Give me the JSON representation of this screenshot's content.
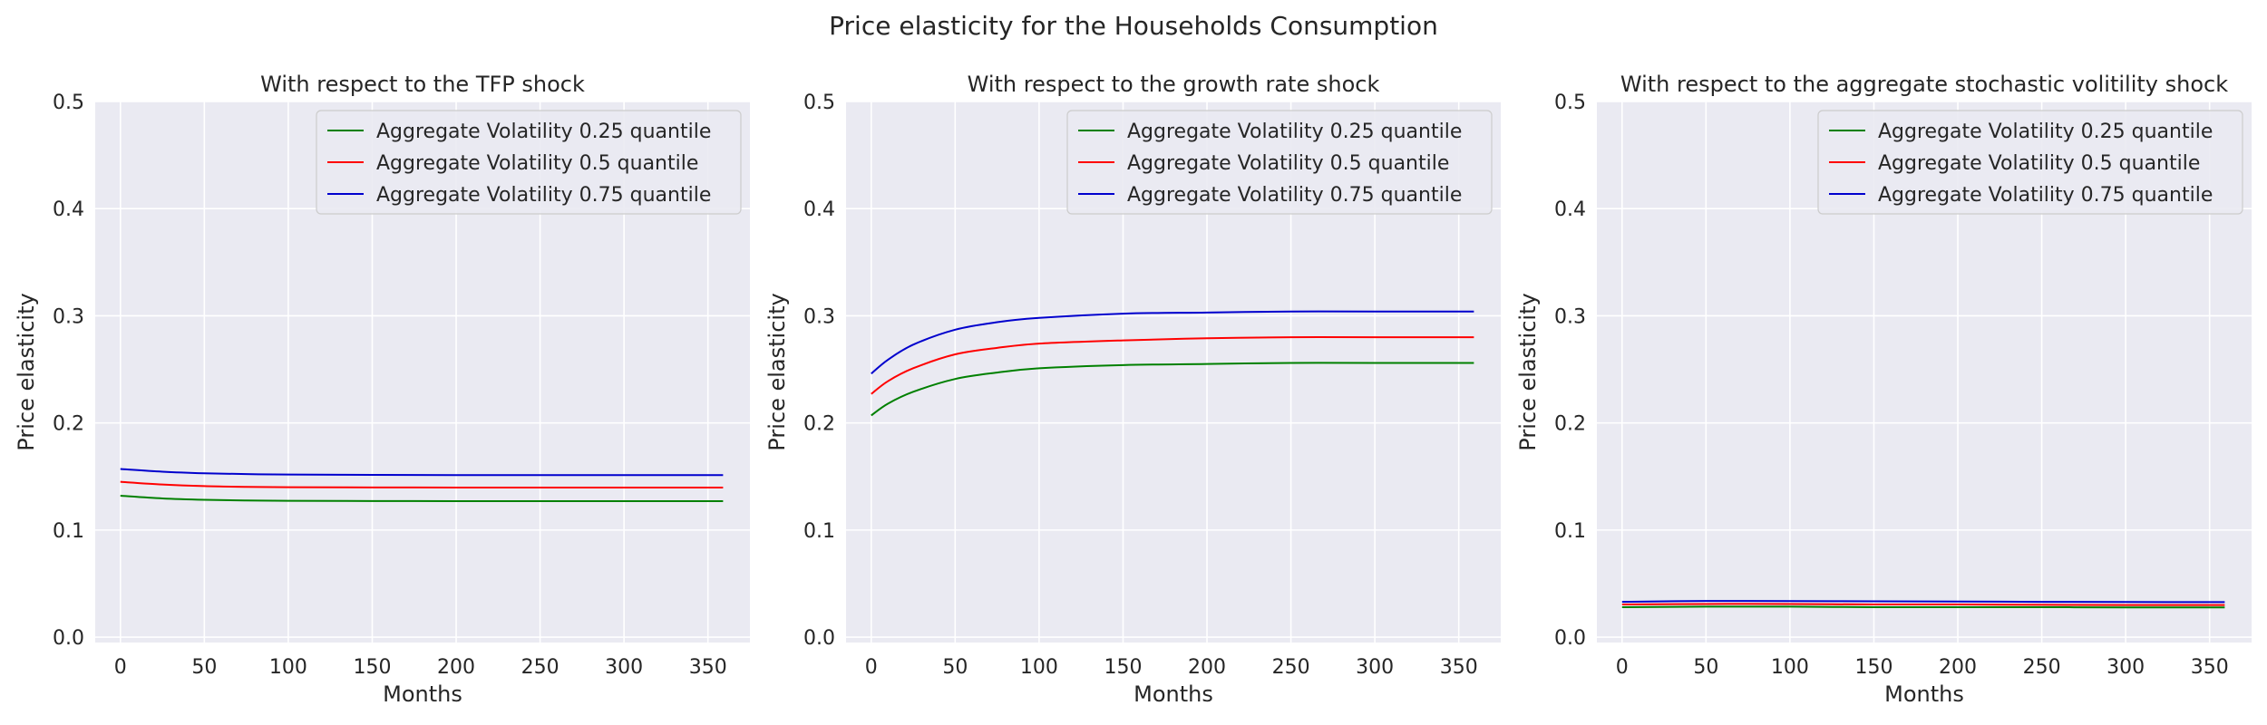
{
  "figure": {
    "title": "Price elasticity for the Households Consumption"
  },
  "chart_data": [
    {
      "type": "line",
      "title": "With respect to the TFP shock",
      "xlabel": "Months",
      "ylabel": "Price elasticity",
      "xlim": [
        -15,
        375
      ],
      "ylim": [
        -0.005,
        0.5
      ],
      "xticks": [
        0,
        50,
        100,
        150,
        200,
        250,
        300,
        350
      ],
      "yticks": [
        0.0,
        0.1,
        0.2,
        0.3,
        0.4,
        0.5
      ],
      "grid": true,
      "legend": "top-right",
      "series": [
        {
          "name": "Aggregate Volatility 0.25 quantile",
          "color": "#008000",
          "x": [
            0,
            25,
            50,
            75,
            100,
            150,
            200,
            250,
            300,
            359
          ],
          "y": [
            0.132,
            0.1295,
            0.1282,
            0.1276,
            0.1273,
            0.1271,
            0.127,
            0.127,
            0.127,
            0.127
          ]
        },
        {
          "name": "Aggregate Volatility 0.5 quantile",
          "color": "#ff0000",
          "x": [
            0,
            25,
            50,
            75,
            100,
            150,
            200,
            250,
            300,
            359
          ],
          "y": [
            0.145,
            0.1425,
            0.141,
            0.1403,
            0.14,
            0.1398,
            0.1397,
            0.1397,
            0.1397,
            0.1397
          ]
        },
        {
          "name": "Aggregate Volatility 0.75 quantile",
          "color": "#0000cd",
          "x": [
            0,
            25,
            50,
            75,
            100,
            150,
            200,
            250,
            300,
            359
          ],
          "y": [
            0.157,
            0.1545,
            0.153,
            0.1522,
            0.1518,
            0.1515,
            0.1513,
            0.1513,
            0.1513,
            0.1513
          ]
        }
      ]
    },
    {
      "type": "line",
      "title": "With respect to the growth rate shock",
      "xlabel": "Months",
      "ylabel": "Price elasticity",
      "xlim": [
        -15,
        375
      ],
      "ylim": [
        -0.005,
        0.5
      ],
      "xticks": [
        0,
        50,
        100,
        150,
        200,
        250,
        300,
        350
      ],
      "yticks": [
        0.0,
        0.1,
        0.2,
        0.3,
        0.4,
        0.5
      ],
      "grid": true,
      "legend": "top-right",
      "series": [
        {
          "name": "Aggregate Volatility 0.25 quantile",
          "color": "#008000",
          "x": [
            0,
            10,
            25,
            50,
            75,
            100,
            150,
            200,
            250,
            300,
            359
          ],
          "y": [
            0.207,
            0.218,
            0.229,
            0.241,
            0.247,
            0.251,
            0.254,
            0.255,
            0.256,
            0.256,
            0.256
          ]
        },
        {
          "name": "Aggregate Volatility 0.5 quantile",
          "color": "#ff0000",
          "x": [
            0,
            10,
            25,
            50,
            75,
            100,
            150,
            200,
            250,
            300,
            359
          ],
          "y": [
            0.227,
            0.239,
            0.251,
            0.264,
            0.27,
            0.274,
            0.277,
            0.279,
            0.28,
            0.28,
            0.28
          ]
        },
        {
          "name": "Aggregate Volatility 0.75 quantile",
          "color": "#0000cd",
          "x": [
            0,
            10,
            25,
            50,
            75,
            100,
            150,
            200,
            250,
            300,
            359
          ],
          "y": [
            0.246,
            0.259,
            0.273,
            0.287,
            0.294,
            0.298,
            0.302,
            0.303,
            0.304,
            0.304,
            0.304
          ]
        }
      ]
    },
    {
      "type": "line",
      "title": "With respect to the aggregate stochastic volitility shock",
      "xlabel": "Months",
      "ylabel": "Price elasticity",
      "xlim": [
        -15,
        375
      ],
      "ylim": [
        -0.005,
        0.5
      ],
      "xticks": [
        0,
        50,
        100,
        150,
        200,
        250,
        300,
        350
      ],
      "yticks": [
        0.0,
        0.1,
        0.2,
        0.3,
        0.4,
        0.5
      ],
      "grid": true,
      "legend": "top-right",
      "series": [
        {
          "name": "Aggregate Volatility 0.25 quantile",
          "color": "#008000",
          "x": [
            0,
            50,
            100,
            150,
            200,
            250,
            300,
            359
          ],
          "y": [
            0.028,
            0.0285,
            0.0285,
            0.028,
            0.028,
            0.028,
            0.0278,
            0.0278
          ]
        },
        {
          "name": "Aggregate Volatility 0.5 quantile",
          "color": "#ff0000",
          "x": [
            0,
            50,
            100,
            150,
            200,
            250,
            300,
            359
          ],
          "y": [
            0.0305,
            0.031,
            0.031,
            0.0305,
            0.0305,
            0.0302,
            0.03,
            0.03
          ]
        },
        {
          "name": "Aggregate Volatility 0.75 quantile",
          "color": "#0000cd",
          "x": [
            0,
            50,
            100,
            150,
            200,
            250,
            300,
            359
          ],
          "y": [
            0.033,
            0.0338,
            0.0337,
            0.0335,
            0.0333,
            0.033,
            0.0328,
            0.0327
          ]
        }
      ]
    }
  ],
  "style": {
    "axes_bg": "#eaeaf2",
    "grid_color": "#ffffff",
    "text_color": "#262626",
    "legend_bg": "#eaeaf2",
    "legend_border": "#cccccc"
  }
}
